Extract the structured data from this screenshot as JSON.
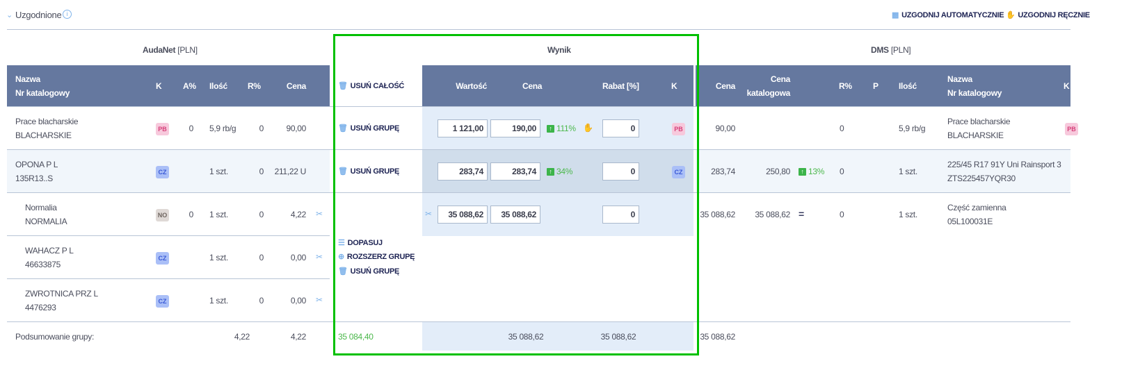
{
  "header": {
    "title": "Uzgodnione",
    "auto_label": "UZGODNIJ AUTOMATYCZNIE",
    "manual_label": "UZGODNIJ RĘCZNIE"
  },
  "sections": {
    "audanet": "AudaNet",
    "audanet_unit": "[PLN]",
    "wynik": "Wynik",
    "dms": "DMS",
    "dms_unit": "[PLN]"
  },
  "left_columns": {
    "name": "Nazwa",
    "catalog": "Nr katalogowy",
    "k": "K",
    "a": "A%",
    "qty": "Ilość",
    "r": "R%",
    "price": "Cena"
  },
  "action_header": "USUŃ CAŁOŚĆ",
  "wynik_columns": {
    "value": "Wartość",
    "price": "Cena",
    "rabat": "Rabat [%]",
    "k": "K"
  },
  "dms_columns": {
    "price": "Cena",
    "catalog_price_1": "Cena",
    "catalog_price_2": "katalogowa",
    "r": "R%",
    "p": "P",
    "qty": "Ilość",
    "name": "Nazwa",
    "catalog": "Nr katalogowy",
    "k": "K"
  },
  "rows": [
    {
      "left": {
        "name": "Prace blacharskie",
        "catalog": "BLACHARSKIE",
        "k": "PB",
        "a": "0",
        "qty": "5,9 rb/g",
        "r": "0",
        "price": "90,00"
      },
      "action": "USUŃ GRUPĘ",
      "wynik": {
        "value": "1 121,00",
        "price": "190,00",
        "change": "111%",
        "rabat": "0",
        "k": "PB"
      },
      "dms": {
        "price": "90,00",
        "r": "0",
        "qty": "5,9 rb/g",
        "name": "Prace blacharskie",
        "catalog": "BLACHARSKIE",
        "k": "PB"
      }
    },
    {
      "left": {
        "name": "OPONA P L",
        "catalog": "135R13..S",
        "k": "CZ",
        "qty": "1 szt.",
        "r": "0",
        "price": "211,22 U"
      },
      "action": "USUŃ GRUPĘ",
      "wynik": {
        "value": "283,74",
        "price": "283,74",
        "change": "34%",
        "rabat": "0",
        "k": "CZ"
      },
      "dms": {
        "price": "283,74",
        "catalog_price": "250,80",
        "change": "13%",
        "r": "0",
        "qty": "1 szt.",
        "name": "225/45 R17 91Y Uni Rainsport 3",
        "catalog": "ZTS225457YQR30"
      }
    },
    {
      "left": {
        "name": "Normalia",
        "catalog": "NORMALIA",
        "k": "NO",
        "a": "0",
        "qty": "1 szt.",
        "r": "0",
        "price": "4,22"
      },
      "wynik": {
        "value": "35 088,62",
        "price": "35 088,62",
        "rabat": "0"
      },
      "dms": {
        "price": "35 088,62",
        "catalog_price": "35 088,62",
        "change": "=",
        "r": "0",
        "qty": "1 szt.",
        "name": "Część zamienna",
        "catalog": "05L100031E"
      }
    },
    {
      "left": {
        "name": "WAHACZ P L",
        "catalog": "46633875",
        "k": "CZ",
        "qty": "1 szt.",
        "r": "0",
        "price": "0,00"
      }
    },
    {
      "left": {
        "name": "ZWROTNICA PRZ L",
        "catalog": "4476293",
        "k": "CZ",
        "qty": "1 szt.",
        "r": "0",
        "price": "0,00"
      }
    }
  ],
  "group_actions": {
    "match": "DOPASUJ",
    "expand": "ROZSZERZ GRUPĘ",
    "delete": "USUŃ GRUPĘ"
  },
  "summary": {
    "label": "Podsumowanie grupy:",
    "left_r": "4,22",
    "left_price": "4,22",
    "action": "35 084,40",
    "wynik_value": "35 088,62",
    "wynik_rabat": "35 088,62",
    "dms_price": "35 088,62"
  },
  "colors": {
    "header_bg": "#65789f",
    "highlight": "#00c000",
    "positive": "#3cb44a",
    "wynik_bg": "#e3edf9"
  }
}
